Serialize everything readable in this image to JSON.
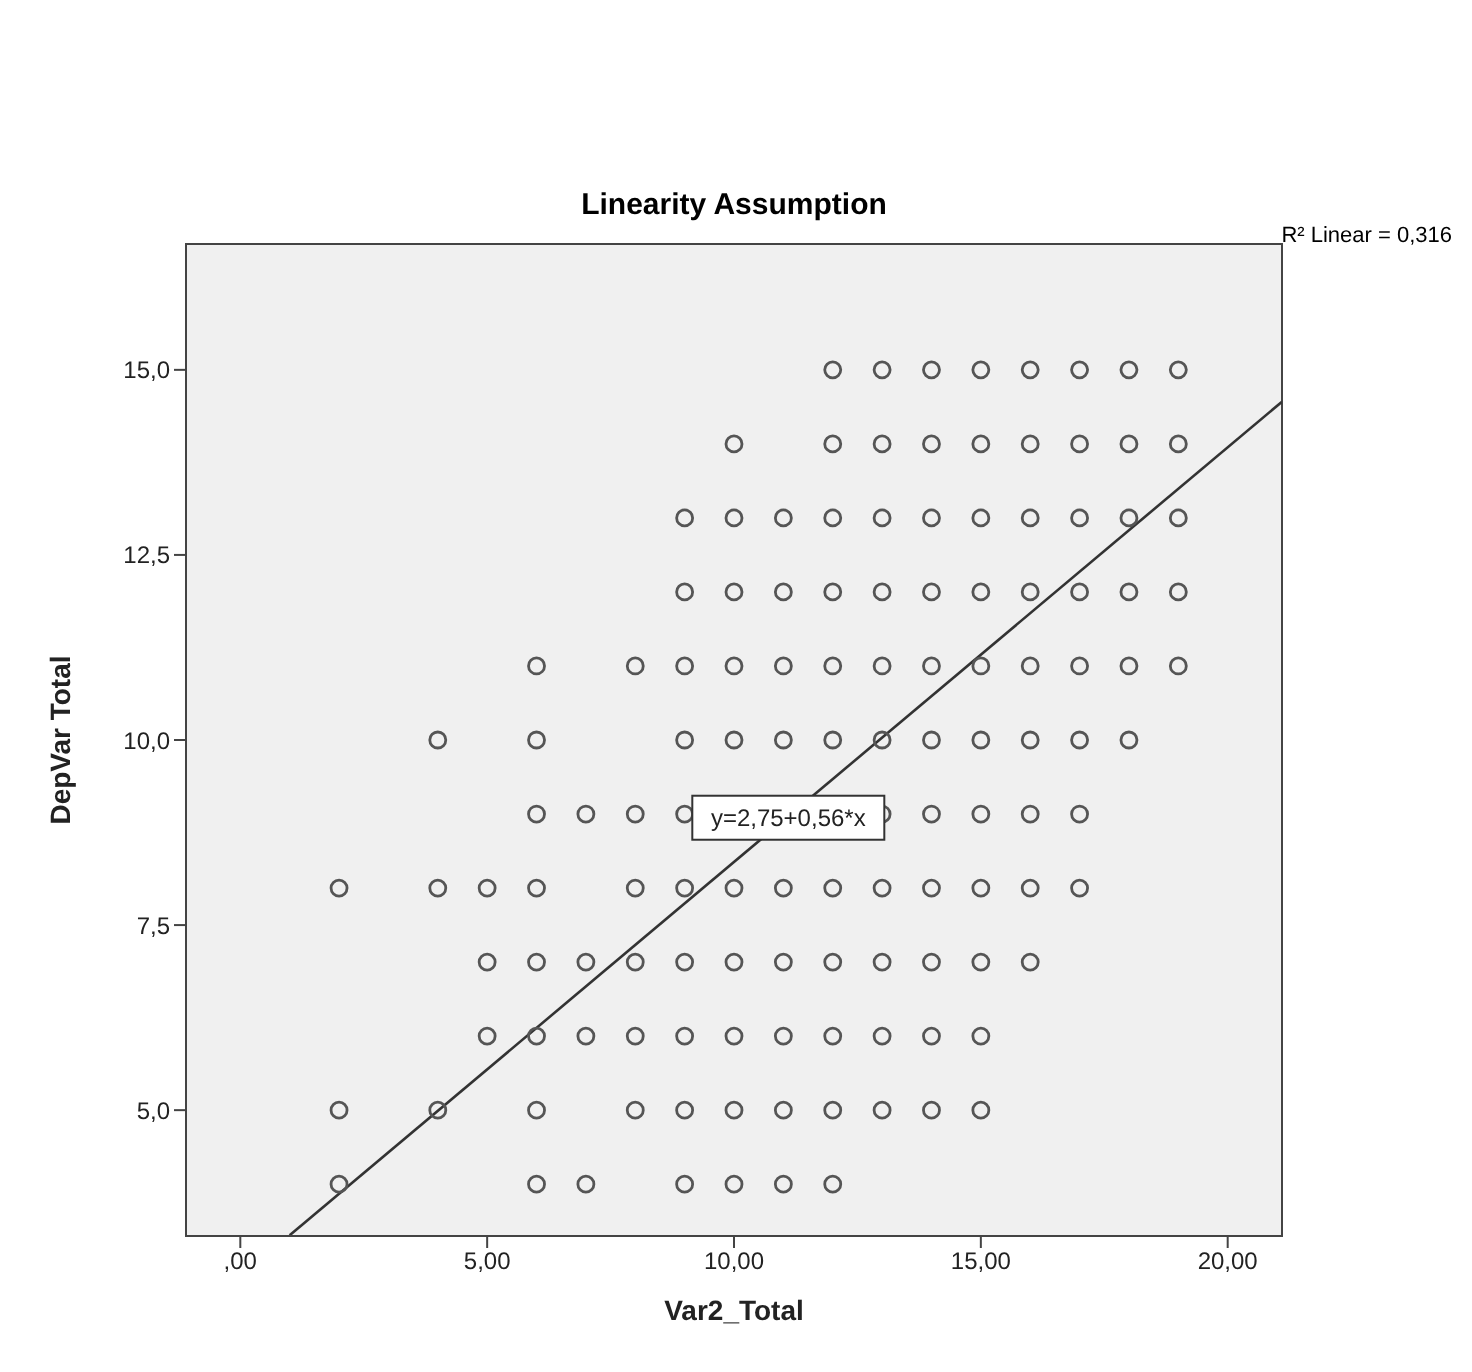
{
  "chart_data": {
    "type": "scatter",
    "title": "Linearity Assumption",
    "xlabel": "Var2_Total",
    "ylabel": "DepVar Total",
    "annotations": [
      {
        "text": "y=2,75+0,56*x",
        "x": 11.1,
        "y": 8.95
      },
      "R² Linear = 0,316"
    ],
    "xlim": [
      -1.1,
      21.1
    ],
    "ylim": [
      3.3,
      16.7
    ],
    "xticks": [
      {
        "value": 0,
        "label": ",00"
      },
      {
        "value": 5,
        "label": "5,00"
      },
      {
        "value": 10,
        "label": "10,00"
      },
      {
        "value": 15,
        "label": "15,00"
      },
      {
        "value": 20,
        "label": "20,00"
      }
    ],
    "yticks": [
      {
        "value": 5,
        "label": "5,0"
      },
      {
        "value": 7.5,
        "label": "7,5"
      },
      {
        "value": 10,
        "label": "10,0"
      },
      {
        "value": 12.5,
        "label": "12,5"
      },
      {
        "value": 15,
        "label": "15,0"
      }
    ],
    "series": [
      {
        "color": "#555555",
        "marker": "circle",
        "x": [
          12,
          13,
          14,
          15,
          16,
          17,
          18,
          19,
          10,
          12,
          13,
          14,
          15,
          16,
          17,
          18,
          19,
          9,
          10,
          11,
          12,
          13,
          14,
          15,
          16,
          17,
          18,
          19,
          9,
          10,
          11,
          12,
          13,
          14,
          15,
          16,
          17,
          18,
          19,
          6,
          8,
          9,
          10,
          11,
          12,
          13,
          14,
          15,
          16,
          17,
          18,
          19,
          4,
          6,
          9,
          10,
          11,
          12,
          13,
          14,
          15,
          16,
          17,
          18,
          6,
          7,
          8,
          9,
          13,
          14,
          15,
          16,
          17,
          2,
          4,
          5,
          6,
          8,
          9,
          10,
          11,
          12,
          13,
          14,
          15,
          16,
          17,
          5,
          6,
          7,
          8,
          9,
          10,
          11,
          12,
          13,
          14,
          15,
          16,
          5,
          6,
          7,
          8,
          9,
          10,
          11,
          12,
          13,
          14,
          15,
          2,
          4,
          6,
          8,
          9,
          10,
          11,
          12,
          13,
          14,
          15,
          2,
          6,
          7,
          9,
          10,
          11,
          12
        ],
        "values": [
          15,
          15,
          15,
          15,
          15,
          15,
          15,
          15,
          14,
          14,
          14,
          14,
          14,
          14,
          14,
          14,
          14,
          13,
          13,
          13,
          13,
          13,
          13,
          13,
          13,
          13,
          13,
          13,
          12,
          12,
          12,
          12,
          12,
          12,
          12,
          12,
          12,
          12,
          12,
          11,
          11,
          11,
          11,
          11,
          11,
          11,
          11,
          11,
          11,
          11,
          11,
          11,
          10,
          10,
          10,
          10,
          10,
          10,
          10,
          10,
          10,
          10,
          10,
          10,
          9,
          9,
          9,
          9,
          9,
          9,
          9,
          9,
          9,
          8,
          8,
          8,
          8,
          8,
          8,
          8,
          8,
          8,
          8,
          8,
          8,
          8,
          8,
          7,
          7,
          7,
          7,
          7,
          7,
          7,
          7,
          7,
          7,
          7,
          7,
          6,
          6,
          6,
          6,
          6,
          6,
          6,
          6,
          6,
          6,
          6,
          5,
          5,
          5,
          5,
          5,
          5,
          5,
          5,
          5,
          5,
          5,
          4,
          4,
          4,
          4,
          4,
          4,
          4
        ]
      },
      {
        "type": "line",
        "color": "#333333",
        "x": [
          1,
          21.1
        ],
        "values": [
          3.31,
          14.57
        ]
      }
    ]
  }
}
